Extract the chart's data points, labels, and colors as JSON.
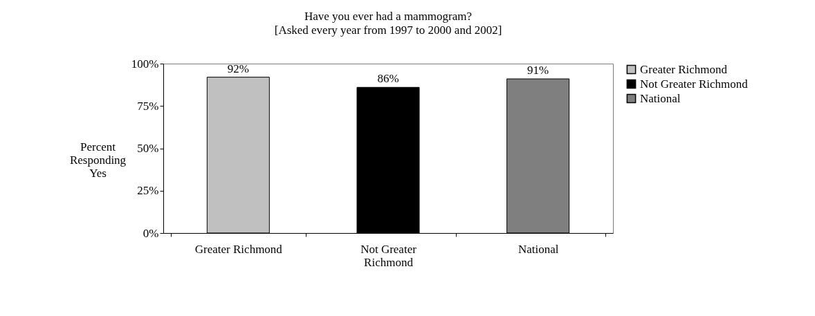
{
  "chart_data": {
    "type": "bar",
    "title": "Have you ever had a mammogram?",
    "subtitle": "[Asked every year from 1997 to 2000 and 2002]",
    "ylabel": "Percent Responding Yes",
    "categories": [
      "Greater Richmond",
      "Not Greater Richmond",
      "National"
    ],
    "series": [
      {
        "name": "Greater Richmond",
        "color": "#c0c0c0",
        "values": [
          92,
          null,
          null
        ],
        "value_labels": [
          "92%",
          null,
          null
        ]
      },
      {
        "name": "Not Greater Richmond",
        "color": "#000000",
        "values": [
          null,
          86,
          null
        ],
        "value_labels": [
          null,
          "86%",
          null
        ]
      },
      {
        "name": "National",
        "color": "#7f7f7f",
        "values": [
          null,
          null,
          91
        ],
        "value_labels": [
          null,
          null,
          "91%"
        ]
      }
    ],
    "ylim": [
      0,
      100
    ],
    "yticks": [
      {
        "value": 0,
        "label": "0%"
      },
      {
        "value": 25,
        "label": "25%"
      },
      {
        "value": 50,
        "label": "50%"
      },
      {
        "value": 75,
        "label": "75%"
      },
      {
        "value": 100,
        "label": "100%"
      }
    ],
    "grid": false,
    "legend": "right"
  }
}
